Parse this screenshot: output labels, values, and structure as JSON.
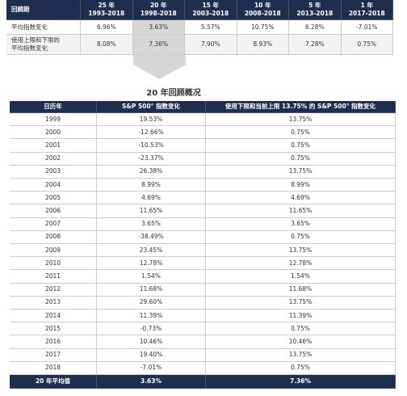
{
  "top_table": {
    "corner": "回顾期",
    "header": [
      {
        "period": "25 年",
        "range": "1993-2018"
      },
      {
        "period": "20 年",
        "range": "1998-2018"
      },
      {
        "period": "15 年",
        "range": "2003-2018"
      },
      {
        "period": "10 年",
        "range": "2008-2018"
      },
      {
        "period": "5 年",
        "range": "2013-2018"
      },
      {
        "period": "1 年",
        "range": "2017-2018"
      }
    ],
    "rows": [
      {
        "label": [
          "平均指数变化"
        ],
        "cells": [
          "6.96%",
          "3.63%",
          "5.57%",
          "10.75%",
          "6.28%",
          "-7.01%"
        ]
      },
      {
        "label": [
          "使用上限和下限的",
          "平均指数变化"
        ],
        "cells": [
          "8.08%",
          "7.36%",
          "7.90%",
          "8.93%",
          "7.28%",
          "0.75%"
        ]
      }
    ]
  },
  "summary": {
    "title": "20 年回顾概况",
    "header": [
      "日历年",
      "S&P 500° 指数变化",
      "使用下限和当前上限 13.75% 的 S&P 500° 指数变化"
    ],
    "rows": [
      [
        "1999",
        "19.53%",
        "13.75%"
      ],
      [
        "2000",
        "-12.66%",
        "0.75%"
      ],
      [
        "2001",
        "-10.53%",
        "0.75%"
      ],
      [
        "2002",
        "-23.37%",
        "0.75%"
      ],
      [
        "2003",
        "26.38%",
        "13.75%"
      ],
      [
        "2004",
        "8.99%",
        "8.99%"
      ],
      [
        "2005",
        "4.69%",
        "4.69%"
      ],
      [
        "2006",
        "11.65%",
        "11.65%"
      ],
      [
        "2007",
        "3.65%",
        "3.65%"
      ],
      [
        "2008",
        "-38.49%",
        "0.75%"
      ],
      [
        "2009",
        "23.45%",
        "13.75%"
      ],
      [
        "2010",
        "12.78%",
        "12.78%"
      ],
      [
        "2011",
        "1.54%",
        "1.54%"
      ],
      [
        "2012",
        "11.68%",
        "11.68%"
      ],
      [
        "2013",
        "29.60%",
        "13.75%"
      ],
      [
        "2014",
        "11.39%",
        "11.39%"
      ],
      [
        "2015",
        "-0.73%",
        "0.75%"
      ],
      [
        "2016",
        "10.46%",
        "10.46%"
      ],
      [
        "2017",
        "19.40%",
        "13.75%"
      ],
      [
        "2018",
        "-7.01%",
        "0.75%"
      ]
    ],
    "footer": [
      "20 年平均值",
      "3.63%",
      "7.36%"
    ]
  }
}
